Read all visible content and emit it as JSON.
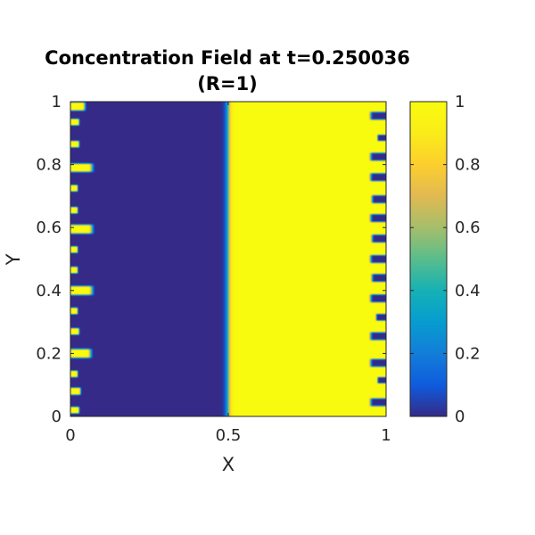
{
  "chart_data": {
    "type": "heatmap",
    "title": "Concentration Field at t=0.250036",
    "subtitle": "(R=1)",
    "xlabel": "X",
    "ylabel": "Y",
    "xlim": [
      0,
      1
    ],
    "ylim": [
      0,
      1
    ],
    "x_ticks": [
      {
        "value": 0,
        "label": "0"
      },
      {
        "value": 0.5,
        "label": "0.5"
      },
      {
        "value": 1,
        "label": "1"
      }
    ],
    "y_ticks": [
      {
        "value": 0,
        "label": "0"
      },
      {
        "value": 0.2,
        "label": "0.2"
      },
      {
        "value": 0.4,
        "label": "0.4"
      },
      {
        "value": 0.6,
        "label": "0.6"
      },
      {
        "value": 0.8,
        "label": "0.8"
      },
      {
        "value": 1,
        "label": "1"
      }
    ],
    "colorbar": {
      "colormap": "parula",
      "clim": [
        0,
        1
      ],
      "ticks": [
        {
          "value": 0,
          "label": "0"
        },
        {
          "value": 0.2,
          "label": "0.2"
        },
        {
          "value": 0.4,
          "label": "0.4"
        },
        {
          "value": 0.6,
          "label": "0.6"
        },
        {
          "value": 0.8,
          "label": "0.8"
        },
        {
          "value": 1,
          "label": "1"
        }
      ]
    },
    "field": {
      "front_position_x": 0.5,
      "front_width": 0.012,
      "low_value": 0,
      "high_value": 1,
      "left_fingers": [
        {
          "y": 0.985,
          "length": 0.05,
          "halfwidth": 0.014
        },
        {
          "y": 0.935,
          "length": 0.03,
          "halfwidth": 0.011
        },
        {
          "y": 0.865,
          "length": 0.03,
          "halfwidth": 0.011
        },
        {
          "y": 0.79,
          "length": 0.075,
          "halfwidth": 0.014
        },
        {
          "y": 0.725,
          "length": 0.025,
          "halfwidth": 0.011
        },
        {
          "y": 0.655,
          "length": 0.025,
          "halfwidth": 0.011
        },
        {
          "y": 0.595,
          "length": 0.075,
          "halfwidth": 0.015
        },
        {
          "y": 0.53,
          "length": 0.025,
          "halfwidth": 0.011
        },
        {
          "y": 0.465,
          "length": 0.025,
          "halfwidth": 0.011
        },
        {
          "y": 0.4,
          "length": 0.075,
          "halfwidth": 0.015
        },
        {
          "y": 0.335,
          "length": 0.025,
          "halfwidth": 0.011
        },
        {
          "y": 0.27,
          "length": 0.03,
          "halfwidth": 0.011
        },
        {
          "y": 0.2,
          "length": 0.07,
          "halfwidth": 0.015
        },
        {
          "y": 0.135,
          "length": 0.025,
          "halfwidth": 0.011
        },
        {
          "y": 0.08,
          "length": 0.035,
          "halfwidth": 0.012
        },
        {
          "y": 0.02,
          "length": 0.03,
          "halfwidth": 0.011
        }
      ],
      "right_fingers": [
        {
          "y": 0.955,
          "length": 0.055,
          "halfwidth": 0.014
        },
        {
          "y": 0.885,
          "length": 0.03,
          "halfwidth": 0.011
        },
        {
          "y": 0.825,
          "length": 0.055,
          "halfwidth": 0.014
        },
        {
          "y": 0.76,
          "length": 0.055,
          "halfwidth": 0.014
        },
        {
          "y": 0.69,
          "length": 0.05,
          "halfwidth": 0.014
        },
        {
          "y": 0.63,
          "length": 0.055,
          "halfwidth": 0.014
        },
        {
          "y": 0.565,
          "length": 0.05,
          "halfwidth": 0.014
        },
        {
          "y": 0.5,
          "length": 0.055,
          "halfwidth": 0.014
        },
        {
          "y": 0.44,
          "length": 0.05,
          "halfwidth": 0.014
        },
        {
          "y": 0.375,
          "length": 0.055,
          "halfwidth": 0.014
        },
        {
          "y": 0.315,
          "length": 0.035,
          "halfwidth": 0.012
        },
        {
          "y": 0.255,
          "length": 0.055,
          "halfwidth": 0.014
        },
        {
          "y": 0.17,
          "length": 0.055,
          "halfwidth": 0.014
        },
        {
          "y": 0.115,
          "length": 0.03,
          "halfwidth": 0.011
        },
        {
          "y": 0.045,
          "length": 0.055,
          "halfwidth": 0.014
        }
      ]
    }
  }
}
